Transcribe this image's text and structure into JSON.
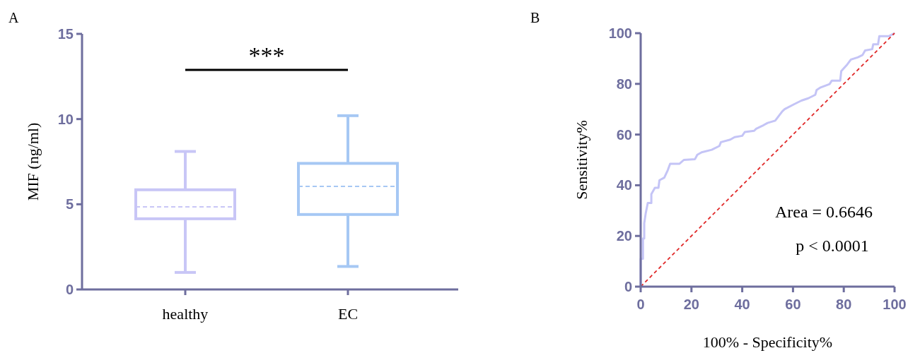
{
  "chart_data": [
    {
      "type": "box",
      "title": "A",
      "ylabel": "MIF (ng/ml)",
      "categories": [
        "healthy",
        "EC"
      ],
      "colors": [
        "#c8c6f6",
        "#a6c8f4"
      ],
      "boxes": [
        {
          "low": 1.0,
          "q1": 4.15,
          "median": 4.85,
          "q3": 5.85,
          "high": 8.1
        },
        {
          "low": 1.35,
          "q1": 4.4,
          "median": 6.05,
          "q3": 7.4,
          "high": 10.2
        }
      ],
      "ylim": [
        0,
        15
      ],
      "yticks": [
        0,
        5,
        10,
        15
      ],
      "annotations": [
        "***"
      ]
    },
    {
      "type": "line",
      "title": "B",
      "xlabel": "100% - Specificity%",
      "ylabel": "Sensitivity%",
      "xlim": [
        0,
        100
      ],
      "ylim": [
        0,
        100
      ],
      "xticks": [
        0,
        20,
        40,
        60,
        80,
        100
      ],
      "yticks": [
        0,
        20,
        40,
        60,
        80,
        100
      ],
      "series": [
        {
          "color": "#c4c4f6",
          "line_style": "solid",
          "x": [
            0,
            0,
            0.9,
            0.9,
            1.4,
            1.4,
            2,
            2.8,
            4.2,
            4.2,
            5.6,
            7,
            7.4,
            9.3,
            10.7,
            11.6,
            15.3,
            17,
            21.4,
            22.3,
            24,
            28,
            31,
            31.6,
            35.3,
            37,
            40,
            41,
            44.7,
            45.5,
            48.4,
            50,
            53,
            55.8,
            56.7,
            60.5,
            63.3,
            66,
            68.8,
            69.3,
            70.7,
            74.4,
            75.3,
            78.6,
            79,
            81.4,
            82.8,
            85.6,
            87.4,
            88.4,
            91.2,
            91.6,
            93.5,
            94,
            97.7,
            100
          ],
          "values": [
            0,
            11,
            11,
            19,
            19,
            25,
            29,
            33,
            33,
            36.5,
            39,
            39,
            42,
            43,
            46,
            48.5,
            48.5,
            50,
            50.3,
            52,
            53,
            54,
            55.5,
            57,
            58,
            59,
            59.5,
            61,
            61.5,
            62.3,
            63.7,
            64.6,
            65.5,
            69.2,
            70,
            72,
            73.4,
            74.3,
            75.7,
            77.6,
            78.5,
            79.9,
            81.3,
            81.3,
            85,
            87.7,
            89.6,
            90.5,
            91.4,
            93.2,
            93.7,
            95.6,
            95.6,
            98.8,
            98.8,
            100
          ]
        },
        {
          "color": "#e02828",
          "line_style": "dashed",
          "x": [
            0,
            100
          ],
          "values": [
            0,
            100
          ]
        }
      ],
      "annotations": [
        "Area = 0.6646",
        "p < 0.0001"
      ]
    }
  ]
}
